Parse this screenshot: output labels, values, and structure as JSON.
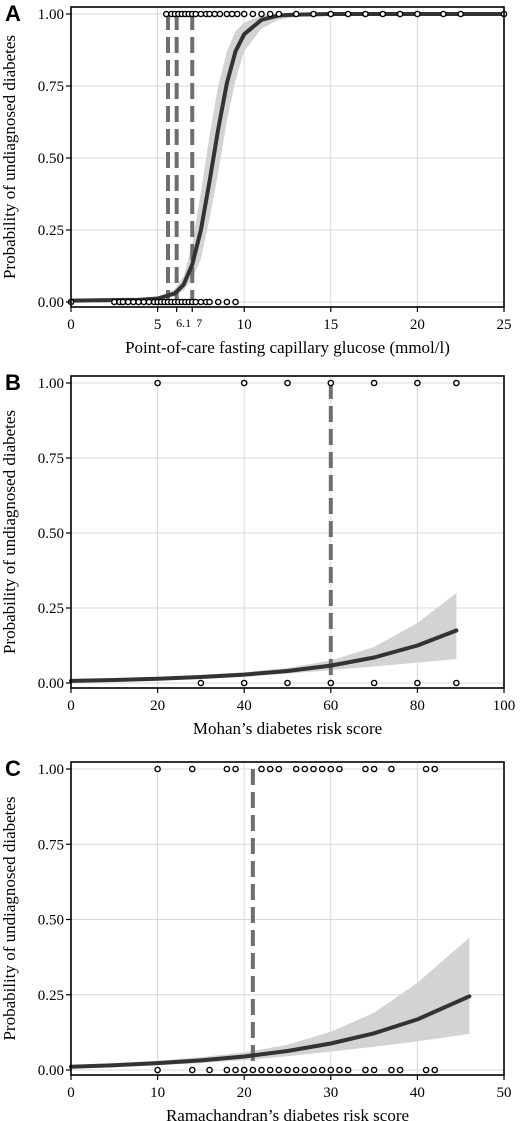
{
  "chart_data": [
    {
      "panel_letter": "A",
      "type": "line",
      "xlabel": "Point-of-care fasting capillary glucose (mmol/l)",
      "ylabel": "Probability of undiagnosed diabetes",
      "xlim": [
        0,
        25
      ],
      "ylim": [
        0,
        1
      ],
      "xticks": [
        {
          "value": 0,
          "label": "0"
        },
        {
          "value": 5,
          "label": "5"
        },
        {
          "value": 10,
          "label": "10"
        },
        {
          "value": 15,
          "label": "15"
        },
        {
          "value": 20,
          "label": "20"
        },
        {
          "value": 25,
          "label": "25"
        }
      ],
      "extra_xticks": [
        {
          "value": 6.1,
          "label": "6.1"
        },
        {
          "value": 7,
          "label": "7"
        }
      ],
      "yticks": [
        {
          "value": 0,
          "label": "0.00"
        },
        {
          "value": 0.25,
          "label": "0.25"
        },
        {
          "value": 0.5,
          "label": "0.50"
        },
        {
          "value": 0.75,
          "label": "0.75"
        },
        {
          "value": 1,
          "label": "1.00"
        }
      ],
      "grid": true,
      "cutoffs": [
        5.6,
        6.1,
        7.0
      ],
      "fit": {
        "x": [
          0,
          4,
          5,
          6,
          6.5,
          7,
          7.5,
          8,
          8.5,
          9,
          9.5,
          10,
          11,
          12,
          13,
          15,
          20,
          25
        ],
        "y": [
          0.005,
          0.008,
          0.012,
          0.03,
          0.06,
          0.13,
          0.25,
          0.42,
          0.6,
          0.76,
          0.87,
          0.93,
          0.98,
          0.995,
          0.998,
          1,
          1,
          1
        ],
        "lower": [
          0.005,
          0.006,
          0.01,
          0.02,
          0.04,
          0.08,
          0.15,
          0.29,
          0.45,
          0.63,
          0.77,
          0.87,
          0.95,
          0.98,
          0.99,
          1,
          1,
          1
        ],
        "upper": [
          0.005,
          0.01,
          0.015,
          0.045,
          0.09,
          0.2,
          0.38,
          0.58,
          0.75,
          0.87,
          0.94,
          0.97,
          0.995,
          1,
          1,
          1,
          1,
          1
        ]
      },
      "points_y1": [
        5.5,
        5.8,
        6.0,
        6.2,
        6.4,
        6.6,
        6.8,
        7.0,
        7.2,
        7.5,
        7.8,
        8.0,
        8.3,
        8.6,
        9.0,
        9.3,
        9.6,
        10.0,
        10.5,
        11.0,
        11.5,
        12.0,
        13.0,
        14.0,
        15.0,
        16.0,
        17.0,
        18.0,
        19.0,
        20.0,
        21.5,
        22.5,
        25.0
      ],
      "points_y0": [
        0.0,
        2.5,
        2.8,
        3.0,
        3.3,
        3.6,
        3.9,
        4.2,
        4.5,
        4.8,
        5.0,
        5.2,
        5.4,
        5.6,
        5.8,
        6.0,
        6.2,
        6.4,
        6.6,
        6.8,
        7.0,
        7.2,
        7.5,
        7.8,
        8.0,
        8.5,
        9.0,
        9.5
      ]
    },
    {
      "panel_letter": "B",
      "type": "line",
      "xlabel": "Mohan’s diabetes risk score",
      "ylabel": "Probability of undiagnosed diabetes",
      "xlim": [
        0,
        100
      ],
      "ylim": [
        0,
        1
      ],
      "xticks": [
        {
          "value": 0,
          "label": "0"
        },
        {
          "value": 20,
          "label": "20"
        },
        {
          "value": 40,
          "label": "40"
        },
        {
          "value": 60,
          "label": "60"
        },
        {
          "value": 80,
          "label": "80"
        },
        {
          "value": 100,
          "label": "100"
        }
      ],
      "extra_xticks": [],
      "yticks": [
        {
          "value": 0,
          "label": "0.00"
        },
        {
          "value": 0.25,
          "label": "0.25"
        },
        {
          "value": 0.5,
          "label": "0.50"
        },
        {
          "value": 0.75,
          "label": "0.75"
        },
        {
          "value": 1,
          "label": "1.00"
        }
      ],
      "grid": true,
      "cutoffs": [
        60
      ],
      "fit": {
        "x": [
          0,
          10,
          20,
          30,
          40,
          50,
          60,
          70,
          80,
          89
        ],
        "y": [
          0.007,
          0.01,
          0.014,
          0.02,
          0.028,
          0.04,
          0.058,
          0.085,
          0.125,
          0.175
        ],
        "lower": [
          0.004,
          0.006,
          0.009,
          0.014,
          0.021,
          0.031,
          0.043,
          0.055,
          0.068,
          0.08
        ],
        "upper": [
          0.012,
          0.015,
          0.02,
          0.027,
          0.036,
          0.05,
          0.075,
          0.12,
          0.2,
          0.3
        ]
      },
      "points_y1": [
        20,
        40,
        50,
        60,
        70,
        80,
        89
      ],
      "points_y0": [
        30,
        40,
        50,
        60,
        70,
        80,
        89
      ]
    },
    {
      "panel_letter": "C",
      "type": "line",
      "xlabel": "Ramachandran’s diabetes risk score",
      "ylabel": "Probability of undiagnosed diabetes",
      "xlim": [
        0,
        50
      ],
      "ylim": [
        0,
        1
      ],
      "xticks": [
        {
          "value": 0,
          "label": "0"
        },
        {
          "value": 10,
          "label": "10"
        },
        {
          "value": 20,
          "label": "20"
        },
        {
          "value": 30,
          "label": "30"
        },
        {
          "value": 40,
          "label": "40"
        },
        {
          "value": 50,
          "label": "50"
        }
      ],
      "extra_xticks": [],
      "yticks": [
        {
          "value": 0,
          "label": "0.00"
        },
        {
          "value": 0.25,
          "label": "0.25"
        },
        {
          "value": 0.5,
          "label": "0.50"
        },
        {
          "value": 0.75,
          "label": "0.75"
        },
        {
          "value": 1,
          "label": "1.00"
        }
      ],
      "grid": true,
      "cutoffs": [
        21
      ],
      "fit": {
        "x": [
          0,
          5,
          10,
          15,
          20,
          25,
          30,
          35,
          40,
          46
        ],
        "y": [
          0.011,
          0.016,
          0.023,
          0.032,
          0.045,
          0.063,
          0.088,
          0.122,
          0.168,
          0.245
        ],
        "lower": [
          0.007,
          0.011,
          0.016,
          0.023,
          0.033,
          0.046,
          0.061,
          0.077,
          0.095,
          0.12
        ],
        "upper": [
          0.017,
          0.022,
          0.031,
          0.043,
          0.058,
          0.084,
          0.127,
          0.19,
          0.29,
          0.44
        ]
      },
      "points_y1": [
        10,
        14,
        18,
        19,
        22,
        23,
        24,
        26,
        27,
        28,
        29,
        30,
        31,
        34,
        35,
        37,
        41,
        42
      ],
      "points_y0": [
        10,
        14,
        16,
        18,
        19,
        20,
        21,
        22,
        23,
        24,
        25,
        26,
        27,
        28,
        29,
        30,
        31,
        32,
        34,
        35,
        37,
        38,
        41,
        42
      ]
    }
  ]
}
